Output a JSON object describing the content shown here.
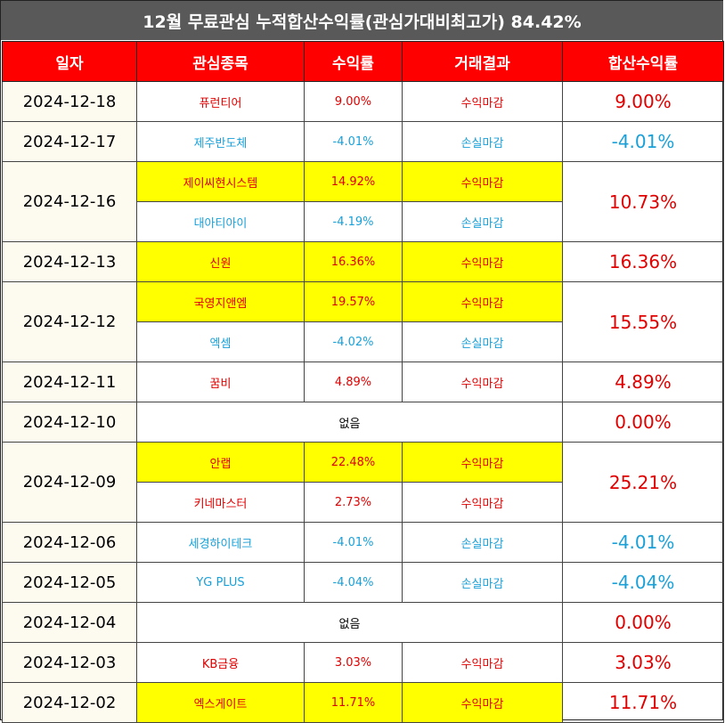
{
  "title": "12월 무료관심 누적합산수익률(관심가대비최고가) 84.42%",
  "headers": [
    "일자",
    "관심종목",
    "수익률",
    "거래결과",
    "합산수익률"
  ],
  "colors": {
    "profit": "#e00000",
    "loss": "#1aa0d8",
    "highlight": "#ffff00",
    "header_bg": "#ff0000",
    "title_bg": "#595959"
  },
  "rows": [
    {
      "date": "2024-12-18",
      "total": "9.00%",
      "total_color": "red",
      "items": [
        {
          "name": "퓨런티어",
          "rate": "9.00%",
          "result": "수익마감",
          "color": "red",
          "highlight": false
        }
      ]
    },
    {
      "date": "2024-12-17",
      "total": "-4.01%",
      "total_color": "blue",
      "items": [
        {
          "name": "제주반도체",
          "rate": "-4.01%",
          "result": "손실마감",
          "color": "blue",
          "highlight": false
        }
      ]
    },
    {
      "date": "2024-12-16",
      "total": "10.73%",
      "total_color": "red",
      "items": [
        {
          "name": "제이씨현시스템",
          "rate": "14.92%",
          "result": "수익마감",
          "color": "red",
          "highlight": true
        },
        {
          "name": "대아티아이",
          "rate": "-4.19%",
          "result": "손실마감",
          "color": "blue",
          "highlight": false
        }
      ]
    },
    {
      "date": "2024-12-13",
      "total": "16.36%",
      "total_color": "red",
      "items": [
        {
          "name": "신원",
          "rate": "16.36%",
          "result": "수익마감",
          "color": "red",
          "highlight": true
        }
      ]
    },
    {
      "date": "2024-12-12",
      "total": "15.55%",
      "total_color": "red",
      "items": [
        {
          "name": "국영지앤엠",
          "rate": "19.57%",
          "result": "수익마감",
          "color": "red",
          "highlight": true
        },
        {
          "name": "엑셈",
          "rate": "-4.02%",
          "result": "손실마감",
          "color": "blue",
          "highlight": false
        }
      ]
    },
    {
      "date": "2024-12-11",
      "total": "4.89%",
      "total_color": "red",
      "items": [
        {
          "name": "꿈비",
          "rate": "4.89%",
          "result": "수익마감",
          "color": "red",
          "highlight": false
        }
      ]
    },
    {
      "date": "2024-12-10",
      "total": "0.00%",
      "total_color": "red",
      "none": "없음",
      "items": []
    },
    {
      "date": "2024-12-09",
      "total": "25.21%",
      "total_color": "red",
      "items": [
        {
          "name": "안랩",
          "rate": "22.48%",
          "result": "수익마감",
          "color": "red",
          "highlight": true
        },
        {
          "name": "키네마스터",
          "rate": "2.73%",
          "result": "수익마감",
          "color": "red",
          "highlight": false
        }
      ]
    },
    {
      "date": "2024-12-06",
      "total": "-4.01%",
      "total_color": "blue",
      "items": [
        {
          "name": "세경하이테크",
          "rate": "-4.01%",
          "result": "손실마감",
          "color": "blue",
          "highlight": false
        }
      ]
    },
    {
      "date": "2024-12-05",
      "total": "-4.04%",
      "total_color": "blue",
      "items": [
        {
          "name": "YG PLUS",
          "rate": "-4.04%",
          "result": "손실마감",
          "color": "blue",
          "highlight": false
        }
      ]
    },
    {
      "date": "2024-12-04",
      "total": "0.00%",
      "total_color": "red",
      "none": "없음",
      "items": []
    },
    {
      "date": "2024-12-03",
      "total": "3.03%",
      "total_color": "red",
      "items": [
        {
          "name": "KB금융",
          "rate": "3.03%",
          "result": "수익마감",
          "color": "red",
          "highlight": false
        }
      ]
    },
    {
      "date": "2024-12-02",
      "total": "11.71%",
      "total_color": "red",
      "items": [
        {
          "name": "엑스게이트",
          "rate": "11.71%",
          "result": "수익마감",
          "color": "red",
          "highlight": true
        }
      ]
    }
  ]
}
